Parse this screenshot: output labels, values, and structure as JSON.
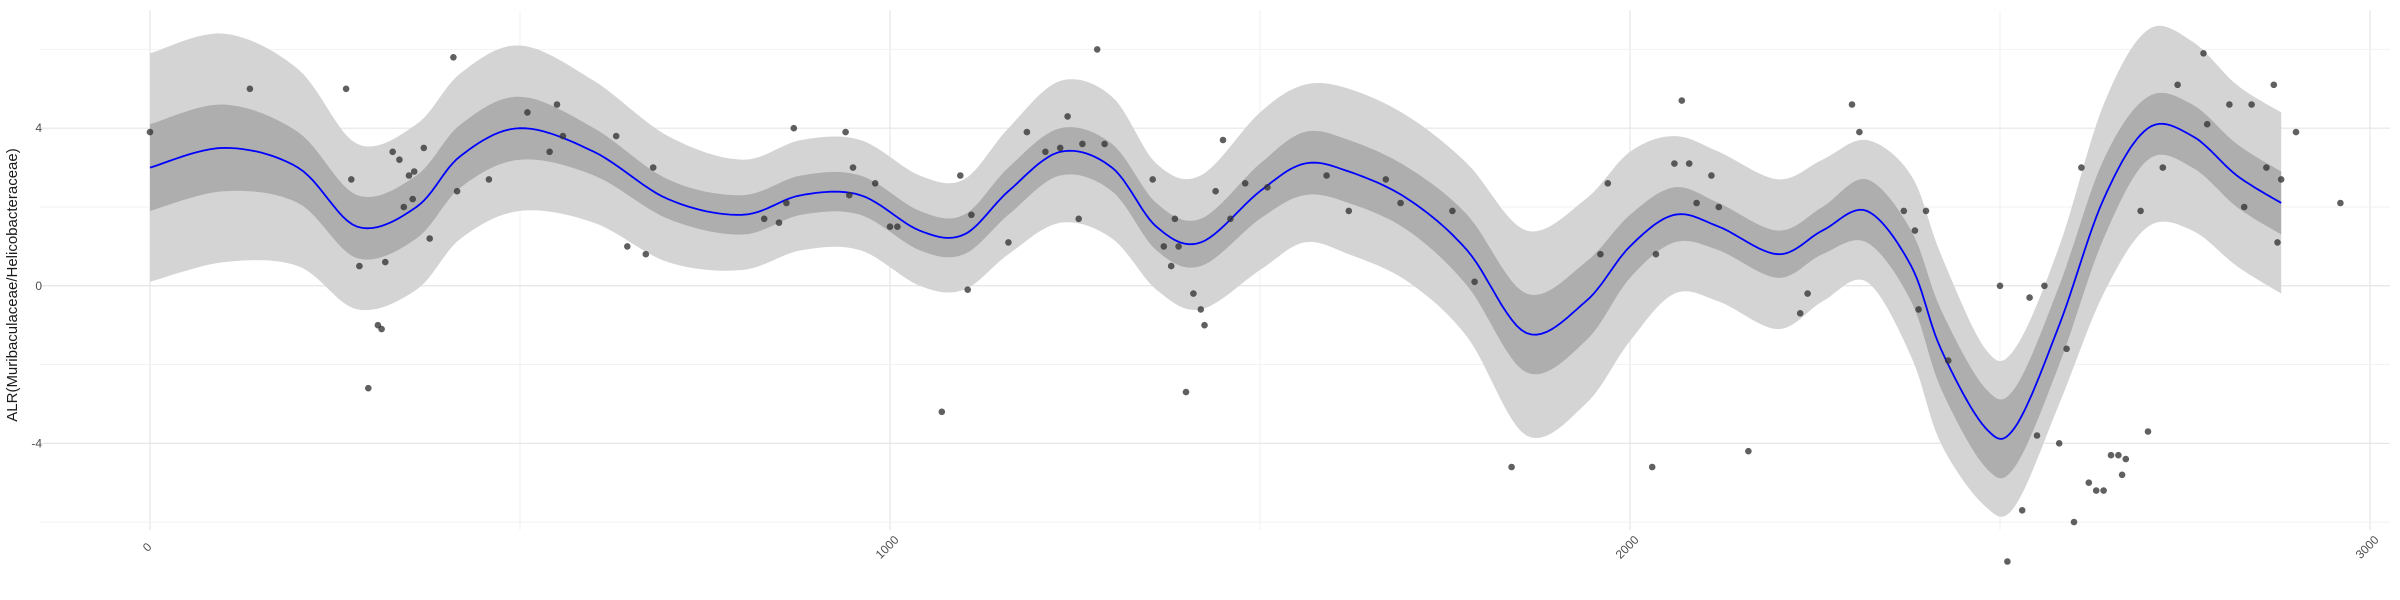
{
  "chart_data": {
    "type": "scatter",
    "title": "",
    "xlabel": "",
    "ylabel": "ALR(Muribaculaceae/Helicobacteraceae)",
    "xlim": [
      0,
      3000
    ],
    "ylim": [
      -6.2,
      7.0
    ],
    "x_ticks": [
      0,
      1000,
      2000,
      3000
    ],
    "x_tick_labels": [
      "0",
      "1000",
      "2000",
      "3000"
    ],
    "y_ticks": [
      -4,
      0,
      4
    ],
    "y_tick_labels": [
      "-4",
      "0",
      "4"
    ],
    "grid": true,
    "legend": "none",
    "series": [
      {
        "kind": "smooth",
        "x": [
          0,
          100,
          200,
          280,
          360,
          420,
          500,
          600,
          700,
          800,
          880,
          960,
          1040,
          1100,
          1160,
          1230,
          1300,
          1360,
          1420,
          1500,
          1560,
          1620,
          1700,
          1780,
          1860,
          1940,
          2000,
          2060,
          2120,
          2200,
          2260,
          2320,
          2380,
          2420,
          2480,
          2520,
          2580,
          2640,
          2700,
          2760,
          2820,
          2880
        ],
        "y": [
          3.0,
          3.5,
          3.0,
          1.5,
          2.0,
          3.3,
          4.0,
          3.4,
          2.2,
          1.8,
          2.3,
          2.3,
          1.4,
          1.3,
          2.4,
          3.4,
          3.0,
          1.5,
          1.1,
          2.4,
          3.1,
          2.9,
          2.2,
          0.9,
          -1.2,
          -0.4,
          1.0,
          1.8,
          1.5,
          0.8,
          1.4,
          1.9,
          0.5,
          -1.6,
          -3.6,
          -3.6,
          -1.0,
          2.2,
          4.0,
          3.8,
          2.8,
          2.1
        ],
        "inner_band": [
          1.1,
          1.1,
          0.9,
          0.8,
          0.8,
          0.8,
          0.8,
          0.6,
          0.5,
          0.5,
          0.5,
          0.5,
          0.5,
          0.5,
          0.6,
          0.6,
          0.6,
          0.6,
          0.6,
          0.7,
          0.8,
          0.8,
          0.8,
          0.9,
          1.0,
          1.0,
          0.8,
          0.7,
          0.6,
          0.6,
          0.6,
          0.8,
          0.9,
          1.0,
          1.0,
          1.0,
          1.0,
          1.0,
          0.8,
          0.8,
          0.8,
          0.8
        ],
        "outer_band": [
          2.9,
          2.9,
          2.5,
          2.1,
          2.1,
          2.1,
          2.1,
          1.8,
          1.6,
          1.4,
          1.4,
          1.4,
          1.4,
          1.4,
          1.6,
          1.8,
          1.8,
          1.6,
          1.7,
          2.0,
          2.0,
          2.1,
          2.1,
          2.2,
          2.6,
          2.6,
          2.4,
          2.0,
          1.9,
          1.9,
          1.8,
          1.8,
          2.3,
          2.4,
          2.0,
          2.0,
          2.0,
          2.4,
          2.5,
          2.4,
          2.3,
          2.3
        ],
        "color": "#0000ff",
        "inner_band_color": "#aeaeae",
        "outer_band_color": "#d4d4d4"
      },
      {
        "kind": "points",
        "color": "#333333",
        "points": [
          [
            0,
            3.9
          ],
          [
            135,
            5.0
          ],
          [
            265,
            5.0
          ],
          [
            272,
            2.7
          ],
          [
            283,
            0.5
          ],
          [
            295,
            -2.6
          ],
          [
            308,
            -1.0
          ],
          [
            313,
            -1.1
          ],
          [
            318,
            0.6
          ],
          [
            328,
            3.4
          ],
          [
            337,
            3.2
          ],
          [
            343,
            2.0
          ],
          [
            350,
            2.8
          ],
          [
            355,
            2.2
          ],
          [
            357,
            2.9
          ],
          [
            370,
            3.5
          ],
          [
            378,
            1.2
          ],
          [
            410,
            5.8
          ],
          [
            415,
            2.4
          ],
          [
            458,
            2.7
          ],
          [
            510,
            4.4
          ],
          [
            540,
            3.4
          ],
          [
            550,
            4.6
          ],
          [
            558,
            3.8
          ],
          [
            630,
            3.8
          ],
          [
            645,
            1.0
          ],
          [
            670,
            0.8
          ],
          [
            680,
            3.0
          ],
          [
            830,
            1.7
          ],
          [
            850,
            1.6
          ],
          [
            860,
            2.1
          ],
          [
            870,
            4.0
          ],
          [
            940,
            3.9
          ],
          [
            945,
            2.3
          ],
          [
            950,
            3.0
          ],
          [
            980,
            2.6
          ],
          [
            1000,
            1.5
          ],
          [
            1010,
            1.5
          ],
          [
            1070,
            -3.2
          ],
          [
            1095,
            2.8
          ],
          [
            1105,
            -0.1
          ],
          [
            1110,
            1.8
          ],
          [
            1160,
            1.1
          ],
          [
            1185,
            3.9
          ],
          [
            1210,
            3.4
          ],
          [
            1230,
            3.5
          ],
          [
            1240,
            4.3
          ],
          [
            1255,
            1.7
          ],
          [
            1260,
            3.6
          ],
          [
            1280,
            6.0
          ],
          [
            1290,
            3.6
          ],
          [
            1355,
            2.7
          ],
          [
            1370,
            1.0
          ],
          [
            1380,
            0.5
          ],
          [
            1385,
            1.7
          ],
          [
            1390,
            1.0
          ],
          [
            1400,
            -2.7
          ],
          [
            1410,
            -0.2
          ],
          [
            1420,
            -0.6
          ],
          [
            1425,
            -1.0
          ],
          [
            1440,
            2.4
          ],
          [
            1450,
            3.7
          ],
          [
            1460,
            1.7
          ],
          [
            1480,
            2.6
          ],
          [
            1510,
            2.5
          ],
          [
            1590,
            2.8
          ],
          [
            1620,
            1.9
          ],
          [
            1670,
            2.7
          ],
          [
            1690,
            2.1
          ],
          [
            1760,
            1.9
          ],
          [
            1790,
            0.1
          ],
          [
            1840,
            -4.6
          ],
          [
            1960,
            0.8
          ],
          [
            1970,
            2.6
          ],
          [
            2030,
            -4.6
          ],
          [
            2035,
            0.8
          ],
          [
            2060,
            3.1
          ],
          [
            2070,
            4.7
          ],
          [
            2080,
            3.1
          ],
          [
            2090,
            2.1
          ],
          [
            2110,
            2.8
          ],
          [
            2120,
            2.0
          ],
          [
            2160,
            -4.2
          ],
          [
            2230,
            -0.7
          ],
          [
            2240,
            -0.2
          ],
          [
            2300,
            4.6
          ],
          [
            2310,
            3.9
          ],
          [
            2370,
            1.9
          ],
          [
            2385,
            1.4
          ],
          [
            2390,
            -0.6
          ],
          [
            2400,
            1.9
          ],
          [
            2430,
            -1.9
          ],
          [
            2500,
            0.0
          ],
          [
            2510,
            -7.0
          ],
          [
            2530,
            -5.7
          ],
          [
            2540,
            -0.3
          ],
          [
            2550,
            -3.8
          ],
          [
            2560,
            0.0
          ],
          [
            2580,
            -4.0
          ],
          [
            2590,
            -1.6
          ],
          [
            2600,
            -6.0
          ],
          [
            2610,
            3.0
          ],
          [
            2620,
            -5.0
          ],
          [
            2630,
            -5.2
          ],
          [
            2640,
            -5.2
          ],
          [
            2650,
            -4.3
          ],
          [
            2660,
            -4.3
          ],
          [
            2665,
            -4.8
          ],
          [
            2670,
            -4.4
          ],
          [
            2690,
            1.9
          ],
          [
            2700,
            -3.7
          ],
          [
            2720,
            3.0
          ],
          [
            2740,
            5.1
          ],
          [
            2775,
            5.9
          ],
          [
            2780,
            4.1
          ],
          [
            2810,
            4.6
          ],
          [
            2830,
            2.0
          ],
          [
            2840,
            4.6
          ],
          [
            2860,
            3.0
          ],
          [
            2870,
            5.1
          ],
          [
            2875,
            1.1
          ],
          [
            2880,
            2.7
          ],
          [
            2900,
            3.9
          ],
          [
            2960,
            2.1
          ]
        ]
      }
    ]
  }
}
